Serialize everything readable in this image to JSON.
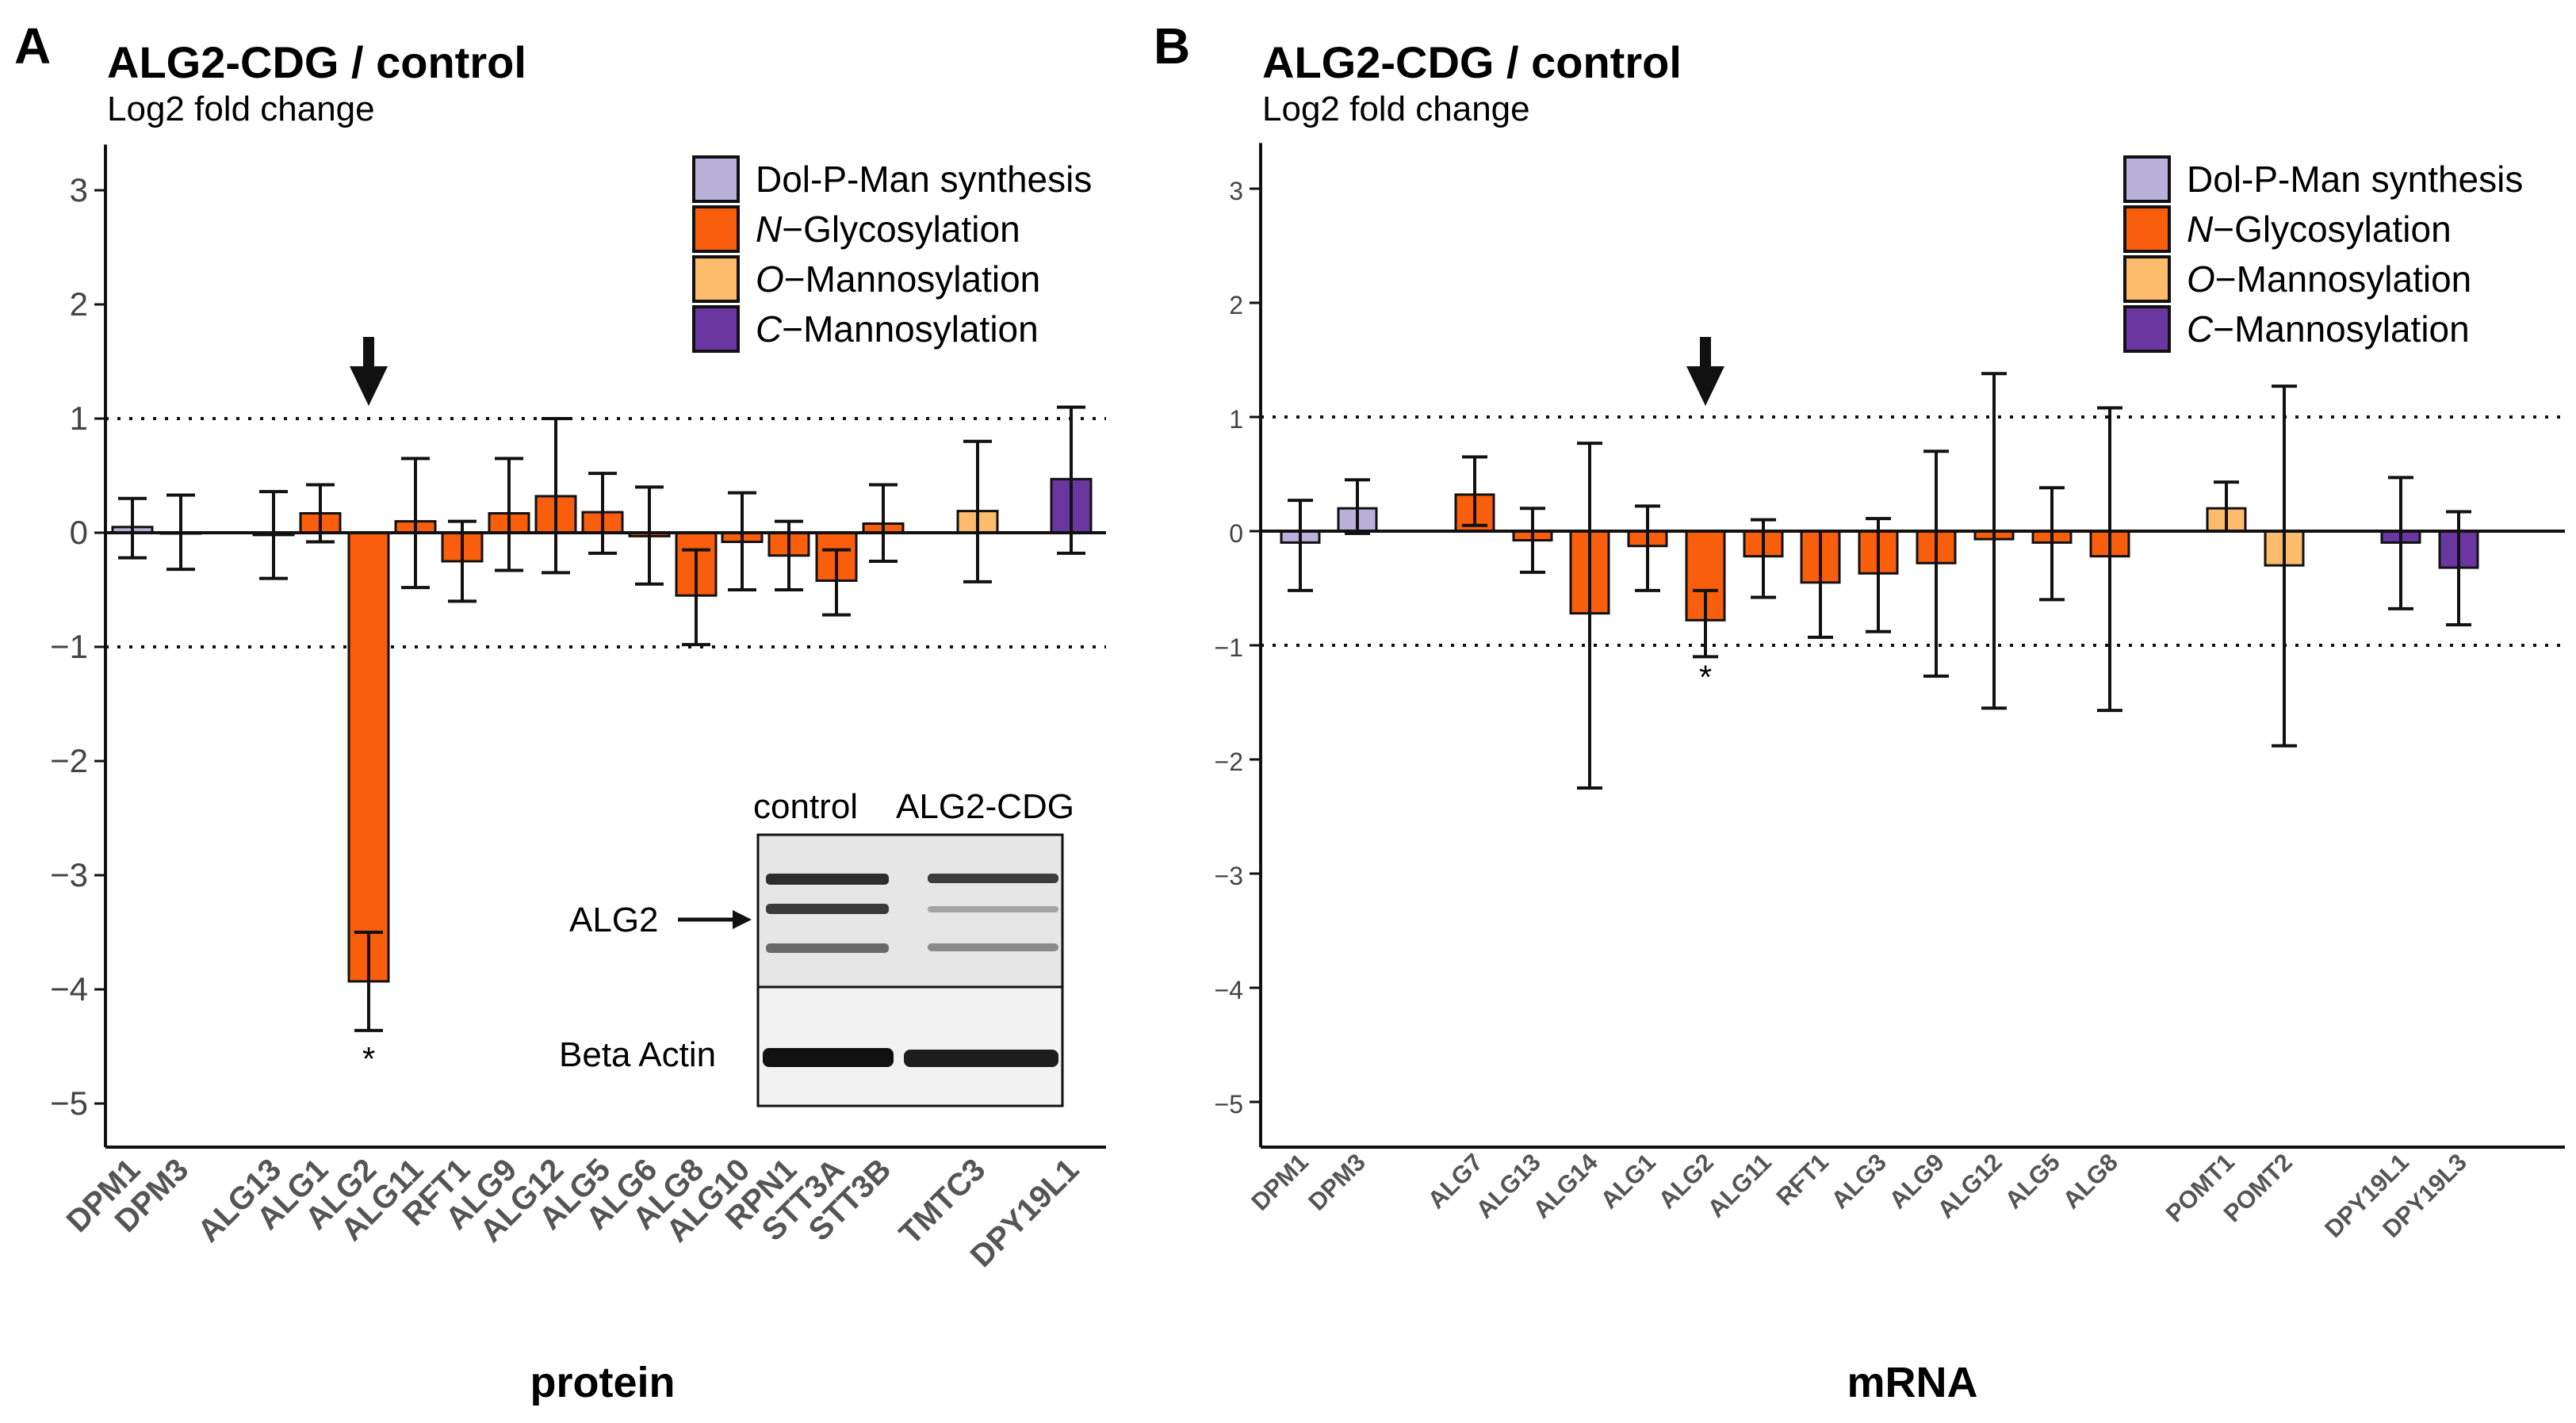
{
  "chart_data": [
    {
      "panel": "A",
      "type": "bar",
      "title": "ALG2-CDG / control",
      "ylabel": "Log2 fold change",
      "xlabel": "protein",
      "ylim": [
        -5.2,
        3.4
      ],
      "yticks": [
        3,
        2,
        1,
        0,
        -1,
        -2,
        -3,
        -4,
        -5
      ],
      "reference_lines": [
        1,
        -1
      ],
      "categories": [
        "DPM1",
        "DPM3",
        "ALG13",
        "ALG1",
        "ALG2",
        "ALG11",
        "RFT1",
        "ALG9",
        "ALG12",
        "ALG5",
        "ALG6",
        "ALG8",
        "ALG10",
        "RPN1",
        "STT3A",
        "STT3B",
        "TMTC3",
        "DPY19L1"
      ],
      "values": [
        0.05,
        0.0,
        -0.02,
        0.17,
        -3.93,
        0.1,
        -0.25,
        0.17,
        0.32,
        0.18,
        -0.03,
        -0.55,
        -0.08,
        -0.2,
        -0.42,
        0.08,
        0.19,
        0.47
      ],
      "error_low": [
        -0.22,
        -0.32,
        -0.4,
        -0.08,
        -4.36,
        -0.48,
        -0.6,
        -0.33,
        -0.35,
        -0.18,
        -0.45,
        -0.98,
        -0.5,
        -0.5,
        -0.72,
        -0.25,
        -0.43,
        -0.18
      ],
      "error_high": [
        0.3,
        0.33,
        0.36,
        0.42,
        -3.5,
        0.65,
        0.1,
        0.65,
        1.0,
        0.52,
        0.4,
        -0.15,
        0.35,
        0.1,
        -0.15,
        0.42,
        0.8,
        1.1
      ],
      "groups": [
        "dolpman",
        "dolpman",
        "nglyc",
        "nglyc",
        "nglyc",
        "nglyc",
        "nglyc",
        "nglyc",
        "nglyc",
        "nglyc",
        "nglyc",
        "nglyc",
        "nglyc",
        "nglyc",
        "nglyc",
        "nglyc",
        "omann",
        "cmann"
      ],
      "significant": [
        "ALG2"
      ],
      "significance_mark": "*",
      "arrow_points_to": "ALG2",
      "inset": {
        "columns": [
          "control",
          "ALG2-CDG"
        ],
        "rows": [
          "ALG2",
          "Beta Actin"
        ]
      }
    },
    {
      "panel": "B",
      "type": "bar",
      "title": "ALG2-CDG / control",
      "ylabel": "Log2 fold change",
      "xlabel": "mRNA",
      "ylim": [
        -5.2,
        3.4
      ],
      "yticks": [
        3,
        2,
        1,
        0,
        -1,
        -2,
        -3,
        -4,
        -5
      ],
      "reference_lines": [
        1,
        -1
      ],
      "categories": [
        "DPM1",
        "DPM3",
        "ALG7",
        "ALG13",
        "ALG14",
        "ALG1",
        "ALG2",
        "ALG11",
        "RFT1",
        "ALG3",
        "ALG9",
        "ALG12",
        "ALG5",
        "ALG8",
        "POMT1",
        "POMT2",
        "DPY19L1",
        "DPY19L3"
      ],
      "values": [
        -0.1,
        0.2,
        0.32,
        -0.08,
        -0.72,
        -0.13,
        -0.78,
        -0.22,
        -0.45,
        -0.37,
        -0.28,
        -0.07,
        -0.1,
        -0.22,
        0.2,
        -0.3,
        -0.1,
        -0.32
      ],
      "error_low": [
        -0.52,
        -0.02,
        0.05,
        -0.36,
        -2.25,
        -0.52,
        -1.1,
        -0.58,
        -0.93,
        -0.88,
        -1.27,
        -1.55,
        -0.6,
        -1.57,
        0.0,
        -1.88,
        -0.68,
        -0.82
      ],
      "error_high": [
        0.27,
        0.45,
        0.65,
        0.2,
        0.77,
        0.22,
        -0.52,
        0.1,
        0.0,
        0.11,
        0.7,
        1.38,
        0.38,
        1.08,
        0.43,
        1.27,
        0.47,
        0.17
      ],
      "groups": [
        "dolpman",
        "dolpman",
        "nglyc",
        "nglyc",
        "nglyc",
        "nglyc",
        "nglyc",
        "nglyc",
        "nglyc",
        "nglyc",
        "nglyc",
        "nglyc",
        "nglyc",
        "nglyc",
        "omann",
        "omann",
        "cmann",
        "cmann"
      ],
      "significant": [
        "ALG2"
      ],
      "significance_mark": "*",
      "arrow_points_to": "ALG2"
    }
  ],
  "legend": [
    {
      "key": "dolpman",
      "prefix": "",
      "label": "Dol-P-Man synthesis",
      "color": "#b9b1d9"
    },
    {
      "key": "nglyc",
      "prefix": "N",
      "label": "−Glycosylation",
      "color": "#f95e0c"
    },
    {
      "key": "omann",
      "prefix": "O",
      "label": "−Mannosylation",
      "color": "#fdbc6b"
    },
    {
      "key": "cmann",
      "prefix": "C",
      "label": "−Mannosylation",
      "color": "#6a37a0"
    }
  ],
  "panel_labels": [
    "A",
    "B"
  ]
}
